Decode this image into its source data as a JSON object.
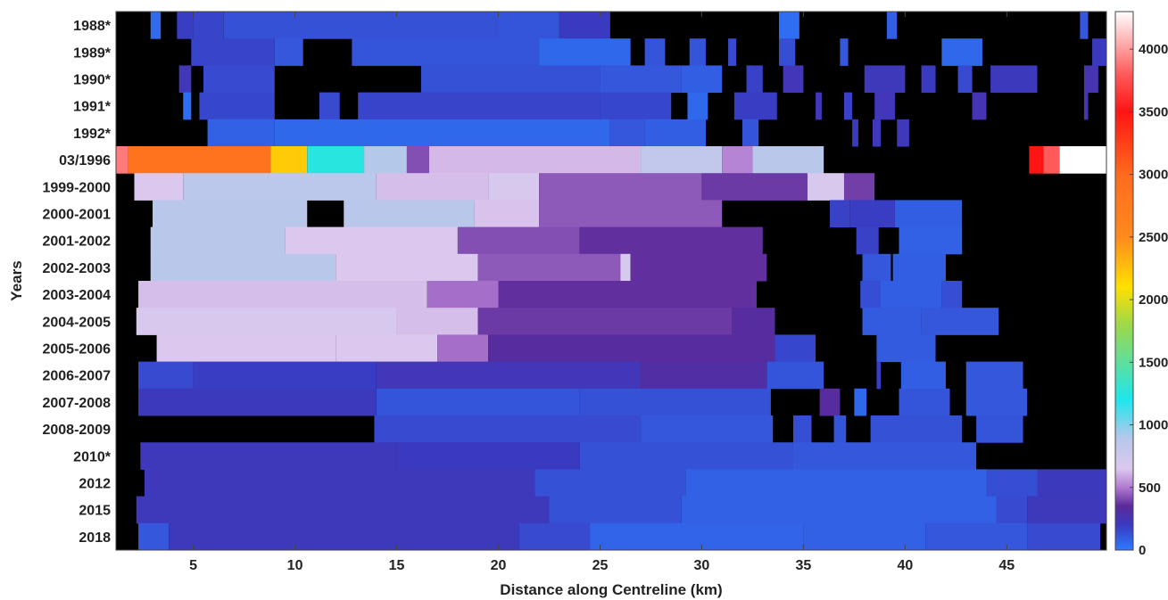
{
  "chart_data": {
    "type": "heatmap",
    "title": "",
    "xlabel": "Distance along Centreline (km)",
    "ylabel": "Years",
    "xlim": [
      1.2,
      49.9
    ],
    "x_ticks": [
      5,
      10,
      15,
      20,
      25,
      30,
      35,
      40,
      45
    ],
    "rows": [
      "1988*",
      "1989*",
      "1990*",
      "1991*",
      "1992*",
      "03/1996",
      "1999-2000",
      "2000-2001",
      "2001-2002",
      "2002-2003",
      "2003-2004",
      "2004-2005",
      "2005-2006",
      "2006-2007",
      "2007-2008",
      "2008-2009",
      "2010*",
      "2012",
      "2015",
      "2018"
    ],
    "colorbar": {
      "range": [
        0,
        4300
      ],
      "ticks": [
        0,
        500,
        1000,
        1500,
        2000,
        2500,
        3000,
        3500,
        4000
      ],
      "colormap": [
        [
          0,
          "#2c7bff"
        ],
        [
          200,
          "#3a3ac0"
        ],
        [
          350,
          "#5b2a9a"
        ],
        [
          500,
          "#b07ad0"
        ],
        [
          650,
          "#dcc8ee"
        ],
        [
          900,
          "#b4c8ea"
        ],
        [
          1200,
          "#1ee6ee"
        ],
        [
          1800,
          "#9ed84a"
        ],
        [
          2100,
          "#ffe000"
        ],
        [
          2500,
          "#ff8a1e"
        ],
        [
          3000,
          "#ff6a1e"
        ],
        [
          3500,
          "#ff1414"
        ],
        [
          3800,
          "#ff5a5a"
        ],
        [
          4300,
          "#ffffff"
        ]
      ]
    },
    "no_data_color": "#000000",
    "series": [
      {
        "name": "1988*",
        "segments": [
          [
            2.9,
            3.4,
            50
          ],
          [
            4.2,
            5.0,
            190
          ],
          [
            5.0,
            6.5,
            170
          ],
          [
            6.5,
            20.0,
            130
          ],
          [
            20.0,
            23.0,
            120
          ],
          [
            23.0,
            25.5,
            200
          ],
          [
            33.8,
            34.8,
            40
          ],
          [
            39.1,
            39.6,
            90
          ],
          [
            48.6,
            49.0,
            110
          ]
        ]
      },
      {
        "name": "1989*",
        "segments": [
          [
            4.9,
            9.0,
            170
          ],
          [
            9.0,
            10.4,
            110
          ],
          [
            12.8,
            22.0,
            120
          ],
          [
            22.0,
            26.5,
            60
          ],
          [
            27.2,
            28.2,
            120
          ],
          [
            29.4,
            30.2,
            120
          ],
          [
            31.3,
            31.7,
            150
          ],
          [
            33.8,
            34.6,
            140
          ],
          [
            36.8,
            37.2,
            110
          ],
          [
            41.8,
            43.8,
            60
          ],
          [
            49.2,
            49.9,
            200
          ]
        ]
      },
      {
        "name": "1990*",
        "segments": [
          [
            4.3,
            4.9,
            230
          ],
          [
            5.5,
            9.0,
            150
          ],
          [
            16.2,
            25.0,
            130
          ],
          [
            25.0,
            29.0,
            110
          ],
          [
            29.0,
            31.0,
            90
          ],
          [
            32.2,
            33.0,
            180
          ],
          [
            34.0,
            35.0,
            230
          ],
          [
            38.0,
            40.0,
            220
          ],
          [
            40.8,
            41.5,
            200
          ],
          [
            42.6,
            43.3,
            150
          ],
          [
            44.2,
            46.5,
            210
          ],
          [
            48.8,
            49.5,
            260
          ]
        ]
      },
      {
        "name": "1991*",
        "segments": [
          [
            4.5,
            4.9,
            40
          ],
          [
            5.3,
            9.0,
            160
          ],
          [
            11.2,
            12.2,
            150
          ],
          [
            13.1,
            25.0,
            170
          ],
          [
            25.0,
            28.5,
            160
          ],
          [
            29.3,
            30.3,
            60
          ],
          [
            31.6,
            33.7,
            190
          ],
          [
            35.6,
            35.9,
            230
          ],
          [
            37.0,
            37.4,
            180
          ],
          [
            38.5,
            39.5,
            230
          ],
          [
            43.3,
            44.0,
            250
          ],
          [
            48.8,
            49.0,
            260
          ]
        ]
      },
      {
        "name": "1992*",
        "segments": [
          [
            5.7,
            9.0,
            80
          ],
          [
            9.0,
            25.5,
            60
          ],
          [
            25.5,
            27.2,
            110
          ],
          [
            27.2,
            30.2,
            90
          ],
          [
            32.0,
            32.8,
            120
          ],
          [
            37.4,
            37.7,
            200
          ],
          [
            38.4,
            38.8,
            220
          ],
          [
            39.6,
            40.2,
            220
          ]
        ]
      },
      {
        "name": "03/1996",
        "segments": [
          [
            1.2,
            1.8,
            3900
          ],
          [
            1.8,
            8.8,
            2880
          ],
          [
            8.8,
            10.6,
            2200
          ],
          [
            10.6,
            13.4,
            1250
          ],
          [
            13.4,
            15.5,
            900
          ],
          [
            15.5,
            16.6,
            420
          ],
          [
            16.6,
            27.0,
            620
          ],
          [
            27.0,
            31.0,
            820
          ],
          [
            31.0,
            32.5,
            520
          ],
          [
            32.5,
            36.0,
            870
          ],
          [
            46.1,
            46.8,
            3500
          ],
          [
            46.8,
            47.6,
            3800
          ],
          [
            47.6,
            49.9,
            4300
          ]
        ]
      },
      {
        "name": "1999-2000",
        "segments": [
          [
            2.1,
            4.5,
            650
          ],
          [
            4.5,
            14.0,
            850
          ],
          [
            14.0,
            19.5,
            630
          ],
          [
            19.5,
            22.0,
            680
          ],
          [
            22.0,
            30.0,
            440
          ],
          [
            30.0,
            35.2,
            380
          ],
          [
            35.2,
            37.0,
            680
          ],
          [
            37.0,
            38.5,
            390
          ]
        ]
      },
      {
        "name": "2000-2001",
        "segments": [
          [
            3.0,
            10.6,
            870
          ],
          [
            12.4,
            18.8,
            870
          ],
          [
            18.8,
            22.0,
            640
          ],
          [
            22.0,
            31.0,
            440
          ],
          [
            36.3,
            37.3,
            180
          ],
          [
            37.3,
            39.5,
            190
          ],
          [
            39.5,
            42.8,
            90
          ]
        ]
      },
      {
        "name": "2001-2002",
        "segments": [
          [
            2.9,
            9.5,
            870
          ],
          [
            9.5,
            18.0,
            650
          ],
          [
            18.0,
            24.0,
            420
          ],
          [
            24.0,
            33.0,
            360
          ],
          [
            37.6,
            38.7,
            180
          ],
          [
            39.7,
            42.8,
            80
          ]
        ]
      },
      {
        "name": "2002-2003",
        "segments": [
          [
            2.9,
            12.0,
            870
          ],
          [
            12.0,
            19.0,
            650
          ],
          [
            19.0,
            26.0,
            440
          ],
          [
            26.0,
            26.5,
            680
          ],
          [
            26.5,
            33.2,
            360
          ],
          [
            37.9,
            39.3,
            110
          ],
          [
            39.4,
            42.0,
            90
          ]
        ]
      },
      {
        "name": "2003-2004",
        "segments": [
          [
            2.3,
            16.5,
            630
          ],
          [
            16.5,
            20.0,
            480
          ],
          [
            20.0,
            32.7,
            360
          ],
          [
            37.8,
            38.8,
            140
          ],
          [
            38.8,
            41.8,
            90
          ],
          [
            41.8,
            42.8,
            140
          ]
        ]
      },
      {
        "name": "2004-2005",
        "segments": [
          [
            2.2,
            15.0,
            680
          ],
          [
            15.0,
            19.0,
            630
          ],
          [
            19.0,
            31.5,
            380
          ],
          [
            31.5,
            33.6,
            330
          ],
          [
            37.9,
            40.8,
            100
          ],
          [
            40.8,
            44.6,
            110
          ]
        ]
      },
      {
        "name": "2005-2006",
        "segments": [
          [
            3.2,
            12.0,
            650
          ],
          [
            12.0,
            17.0,
            650
          ],
          [
            17.0,
            19.5,
            480
          ],
          [
            19.5,
            33.6,
            330
          ],
          [
            33.6,
            35.6,
            160
          ],
          [
            38.6,
            41.5,
            100
          ]
        ]
      },
      {
        "name": "2006-2007",
        "segments": [
          [
            2.3,
            5.0,
            150
          ],
          [
            5.0,
            14.0,
            190
          ],
          [
            14.0,
            27.0,
            230
          ],
          [
            27.0,
            33.2,
            310
          ],
          [
            33.2,
            36.0,
            120
          ],
          [
            38.6,
            38.8,
            190
          ],
          [
            39.8,
            42.0,
            90
          ],
          [
            43.0,
            45.8,
            110
          ]
        ]
      },
      {
        "name": "2007-2008",
        "segments": [
          [
            2.3,
            14.0,
            210
          ],
          [
            14.0,
            24.0,
            120
          ],
          [
            24.0,
            33.4,
            130
          ],
          [
            35.8,
            36.8,
            330
          ],
          [
            37.5,
            38.1,
            60
          ],
          [
            39.7,
            42.2,
            120
          ],
          [
            43.0,
            46.0,
            110
          ]
        ]
      },
      {
        "name": "2008-2009",
        "segments": [
          [
            13.9,
            27.0,
            150
          ],
          [
            27.0,
            33.5,
            110
          ],
          [
            34.5,
            35.4,
            140
          ],
          [
            36.5,
            37.1,
            120
          ],
          [
            38.3,
            42.8,
            130
          ],
          [
            43.5,
            45.8,
            120
          ]
        ]
      },
      {
        "name": "2010*",
        "segments": [
          [
            2.4,
            15.0,
            220
          ],
          [
            15.0,
            24.0,
            200
          ],
          [
            24.0,
            34.5,
            130
          ],
          [
            34.5,
            43.5,
            110
          ]
        ]
      },
      {
        "name": "2012",
        "segments": [
          [
            2.6,
            21.8,
            220
          ],
          [
            21.8,
            29.2,
            130
          ],
          [
            29.2,
            44.0,
            80
          ],
          [
            44.0,
            46.5,
            140
          ],
          [
            46.5,
            49.9,
            210
          ]
        ]
      },
      {
        "name": "2015",
        "segments": [
          [
            2.2,
            22.5,
            220
          ],
          [
            22.5,
            29.0,
            130
          ],
          [
            29.0,
            44.5,
            80
          ],
          [
            44.5,
            46.0,
            150
          ],
          [
            46.0,
            49.9,
            220
          ]
        ]
      },
      {
        "name": "2018",
        "segments": [
          [
            2.3,
            3.8,
            110
          ],
          [
            3.8,
            21.0,
            220
          ],
          [
            21.0,
            24.5,
            150
          ],
          [
            24.5,
            35.0,
            70
          ],
          [
            35.0,
            41.0,
            80
          ],
          [
            41.0,
            46.0,
            110
          ],
          [
            46.0,
            49.6,
            150
          ]
        ]
      }
    ]
  }
}
